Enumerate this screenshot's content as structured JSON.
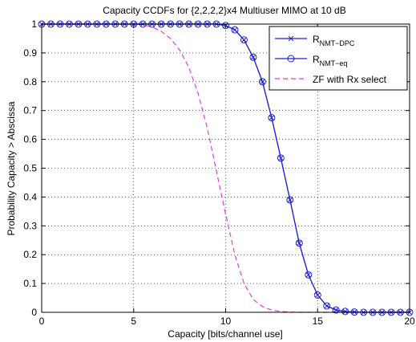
{
  "chart_data": {
    "type": "line",
    "title": "Capacity CCDFs for {2,2,2,2}x4 Multiuser MIMO at 10 dB",
    "xlabel": "Capacity [bits/channel use]",
    "ylabel": "Probability Capacity > Abscissa",
    "xlim": [
      0,
      20
    ],
    "ylim": [
      0,
      1
    ],
    "xticks": [
      "0",
      "5",
      "10",
      "15",
      "20"
    ],
    "yticks": [
      "0",
      "0.1",
      "0.2",
      "0.3",
      "0.4",
      "0.5",
      "0.6",
      "0.7",
      "0.8",
      "0.9",
      "1"
    ],
    "grid": true,
    "legend_position": "top-right",
    "series": [
      {
        "name": "R_NMT-DPC",
        "legend_main": "R",
        "legend_sub": "NMT−DPC",
        "color": "#1f1fd6",
        "line_style": "solid",
        "marker": "x",
        "x": [
          0,
          0.5,
          1,
          1.5,
          2,
          2.5,
          3,
          3.5,
          4,
          4.5,
          5,
          5.5,
          6,
          6.5,
          7,
          7.5,
          8,
          8.5,
          9,
          9.5,
          10,
          10.5,
          11,
          11.5,
          12,
          12.5,
          13,
          13.5,
          14,
          14.5,
          15,
          15.5,
          16,
          16.5,
          17,
          17.5,
          18,
          18.5,
          19,
          19.5,
          20
        ],
        "y": [
          1,
          1,
          1,
          1,
          1,
          1,
          1,
          1,
          1,
          1,
          1,
          1,
          1,
          1,
          1,
          1,
          1,
          1,
          1,
          1,
          0.995,
          0.98,
          0.945,
          0.885,
          0.8,
          0.675,
          0.535,
          0.39,
          0.24,
          0.13,
          0.06,
          0.022,
          0.008,
          0.003,
          0.001,
          0,
          0,
          0,
          0,
          0,
          0
        ]
      },
      {
        "name": "R_NMT-eq",
        "legend_main": "R",
        "legend_sub": "NMT−eq",
        "color": "#1f1fd6",
        "line_style": "solid",
        "marker": "o",
        "x": [
          0,
          0.5,
          1,
          1.5,
          2,
          2.5,
          3,
          3.5,
          4,
          4.5,
          5,
          5.5,
          6,
          6.5,
          7,
          7.5,
          8,
          8.5,
          9,
          9.5,
          10,
          10.5,
          11,
          11.5,
          12,
          12.5,
          13,
          13.5,
          14,
          14.5,
          15,
          15.5,
          16,
          16.5,
          17,
          17.5,
          18,
          18.5,
          19,
          19.5,
          20
        ],
        "y": [
          1,
          1,
          1,
          1,
          1,
          1,
          1,
          1,
          1,
          1,
          1,
          1,
          1,
          1,
          1,
          1,
          1,
          1,
          1,
          1,
          0.995,
          0.98,
          0.945,
          0.885,
          0.8,
          0.675,
          0.535,
          0.39,
          0.24,
          0.13,
          0.06,
          0.022,
          0.008,
          0.003,
          0.001,
          0,
          0,
          0,
          0,
          0,
          0
        ]
      },
      {
        "name": "ZF with Rx select",
        "color": "#e23be2",
        "line_style": "dashed",
        "marker": "none",
        "x": [
          0,
          1,
          2,
          3,
          4,
          5,
          5.5,
          6,
          6.5,
          7,
          7.5,
          8,
          8.5,
          9,
          9.5,
          10,
          10.5,
          11,
          11.5,
          12,
          12.5,
          13,
          13.5,
          14,
          15,
          16,
          17,
          18,
          19,
          20
        ],
        "y": [
          1,
          1,
          1,
          1,
          1,
          1,
          0.998,
          0.99,
          0.975,
          0.95,
          0.91,
          0.85,
          0.76,
          0.64,
          0.49,
          0.34,
          0.2,
          0.1,
          0.045,
          0.02,
          0.008,
          0.003,
          0.001,
          0,
          0,
          0,
          0,
          0,
          0,
          0
        ]
      }
    ]
  }
}
